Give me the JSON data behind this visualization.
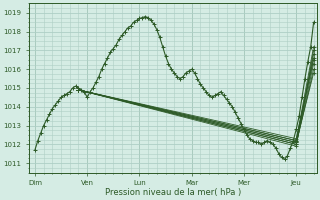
{
  "background_color": "#d5ece4",
  "grid_color": "#aecfc5",
  "line_color": "#2d5a27",
  "xlabel": "Pression niveau de la mer( hPa )",
  "ylim": [
    1010.5,
    1019.5
  ],
  "yticks": [
    1011,
    1012,
    1013,
    1014,
    1015,
    1016,
    1017,
    1018,
    1019
  ],
  "x_day_labels": [
    "Dim",
    "Ven",
    "Lun",
    "Mar",
    "Mer",
    "Jeu"
  ],
  "x_day_positions": [
    0.0,
    0.9,
    1.8,
    2.7,
    3.6,
    4.5
  ],
  "xlim": [
    -0.1,
    4.85
  ],
  "observed_line": [
    [
      0.0,
      1011.7
    ],
    [
      0.05,
      1012.2
    ],
    [
      0.1,
      1012.6
    ],
    [
      0.15,
      1013.0
    ],
    [
      0.2,
      1013.3
    ],
    [
      0.25,
      1013.6
    ],
    [
      0.3,
      1013.9
    ],
    [
      0.35,
      1014.1
    ],
    [
      0.4,
      1014.3
    ],
    [
      0.45,
      1014.5
    ],
    [
      0.5,
      1014.6
    ],
    [
      0.55,
      1014.7
    ],
    [
      0.6,
      1014.8
    ],
    [
      0.65,
      1015.0
    ],
    [
      0.7,
      1015.1
    ],
    [
      0.75,
      1015.0
    ],
    [
      0.8,
      1014.9
    ],
    [
      0.85,
      1014.8
    ],
    [
      0.9,
      1014.5
    ],
    [
      0.95,
      1014.8
    ],
    [
      1.0,
      1015.0
    ],
    [
      1.05,
      1015.3
    ],
    [
      1.1,
      1015.6
    ],
    [
      1.15,
      1016.0
    ],
    [
      1.2,
      1016.3
    ],
    [
      1.25,
      1016.6
    ],
    [
      1.3,
      1016.9
    ],
    [
      1.35,
      1017.1
    ],
    [
      1.4,
      1017.3
    ],
    [
      1.45,
      1017.6
    ],
    [
      1.5,
      1017.8
    ],
    [
      1.55,
      1018.0
    ],
    [
      1.6,
      1018.2
    ],
    [
      1.65,
      1018.3
    ],
    [
      1.7,
      1018.5
    ],
    [
      1.75,
      1018.6
    ],
    [
      1.8,
      1018.7
    ],
    [
      1.85,
      1018.75
    ],
    [
      1.9,
      1018.8
    ],
    [
      1.95,
      1018.75
    ],
    [
      2.0,
      1018.6
    ],
    [
      2.05,
      1018.4
    ],
    [
      2.1,
      1018.1
    ],
    [
      2.15,
      1017.7
    ],
    [
      2.2,
      1017.2
    ],
    [
      2.25,
      1016.7
    ],
    [
      2.3,
      1016.3
    ],
    [
      2.35,
      1016.0
    ],
    [
      2.4,
      1015.8
    ],
    [
      2.45,
      1015.6
    ],
    [
      2.5,
      1015.5
    ],
    [
      2.55,
      1015.6
    ],
    [
      2.6,
      1015.8
    ],
    [
      2.65,
      1015.9
    ],
    [
      2.7,
      1016.0
    ],
    [
      2.75,
      1015.8
    ],
    [
      2.8,
      1015.5
    ],
    [
      2.85,
      1015.2
    ],
    [
      2.9,
      1015.0
    ],
    [
      2.95,
      1014.8
    ],
    [
      3.0,
      1014.6
    ],
    [
      3.05,
      1014.5
    ],
    [
      3.1,
      1014.6
    ],
    [
      3.15,
      1014.7
    ],
    [
      3.2,
      1014.8
    ],
    [
      3.25,
      1014.6
    ],
    [
      3.3,
      1014.4
    ],
    [
      3.35,
      1014.2
    ],
    [
      3.4,
      1014.0
    ],
    [
      3.45,
      1013.7
    ],
    [
      3.5,
      1013.4
    ],
    [
      3.55,
      1013.1
    ],
    [
      3.6,
      1012.8
    ],
    [
      3.65,
      1012.5
    ],
    [
      3.7,
      1012.3
    ],
    [
      3.75,
      1012.2
    ],
    [
      3.8,
      1012.1
    ],
    [
      3.85,
      1012.1
    ],
    [
      3.9,
      1012.0
    ],
    [
      3.95,
      1012.1
    ],
    [
      4.0,
      1012.2
    ],
    [
      4.05,
      1012.1
    ],
    [
      4.1,
      1012.0
    ],
    [
      4.15,
      1011.8
    ],
    [
      4.2,
      1011.5
    ],
    [
      4.25,
      1011.3
    ],
    [
      4.3,
      1011.2
    ],
    [
      4.35,
      1011.4
    ],
    [
      4.4,
      1011.8
    ],
    [
      4.45,
      1012.2
    ],
    [
      4.5,
      1012.8
    ],
    [
      4.55,
      1013.5
    ],
    [
      4.6,
      1014.5
    ],
    [
      4.65,
      1015.5
    ],
    [
      4.7,
      1016.4
    ],
    [
      4.75,
      1017.2
    ],
    [
      4.8,
      1018.5
    ]
  ],
  "forecast_lines": [
    [
      [
        0.75,
        1014.9
      ],
      [
        4.5,
        1012.2
      ],
      [
        4.8,
        1016.5
      ]
    ],
    [
      [
        0.75,
        1014.9
      ],
      [
        4.5,
        1012.1
      ],
      [
        4.8,
        1016.8
      ]
    ],
    [
      [
        0.75,
        1014.9
      ],
      [
        4.5,
        1011.9
      ],
      [
        4.8,
        1017.0
      ]
    ],
    [
      [
        0.75,
        1014.9
      ],
      [
        4.5,
        1012.0
      ],
      [
        4.8,
        1016.3
      ]
    ],
    [
      [
        0.75,
        1014.9
      ],
      [
        4.5,
        1012.3
      ],
      [
        4.8,
        1016.6
      ]
    ],
    [
      [
        0.75,
        1014.9
      ],
      [
        4.5,
        1012.2
      ],
      [
        4.8,
        1017.2
      ]
    ],
    [
      [
        0.75,
        1014.9
      ],
      [
        4.5,
        1012.0
      ],
      [
        4.8,
        1016.0
      ]
    ],
    [
      [
        0.75,
        1014.9
      ],
      [
        4.5,
        1012.1
      ],
      [
        4.8,
        1015.8
      ]
    ]
  ]
}
